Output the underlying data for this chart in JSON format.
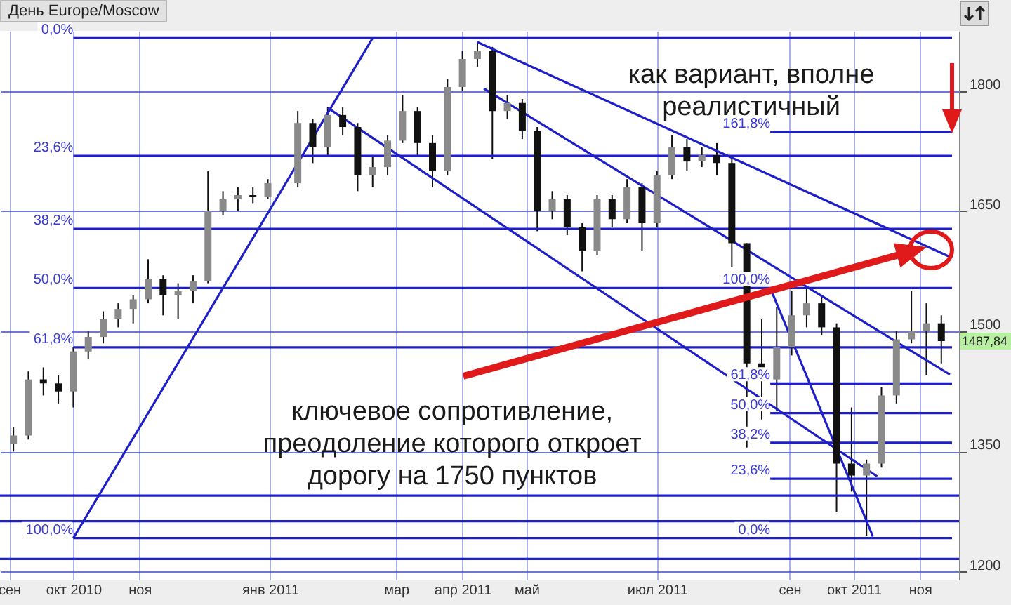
{
  "chart_data": {
    "type": "candlestick",
    "title": "День Europe/Moscow",
    "x": [
      "2010-09-03",
      "2010-09-10",
      "2010-09-17",
      "2010-09-24",
      "2010-10-01",
      "2010-10-08",
      "2010-10-15",
      "2010-10-22",
      "2010-10-29",
      "2010-11-05",
      "2010-11-12",
      "2010-11-19",
      "2010-11-26",
      "2010-12-03",
      "2010-12-10",
      "2010-12-17",
      "2010-12-24",
      "2010-12-31",
      "2011-01-14",
      "2011-01-21",
      "2011-01-28",
      "2011-02-04",
      "2011-02-11",
      "2011-02-18",
      "2011-02-25",
      "2011-03-04",
      "2011-03-11",
      "2011-03-18",
      "2011-03-25",
      "2011-04-01",
      "2011-04-08",
      "2011-04-15",
      "2011-04-22",
      "2011-04-29",
      "2011-05-06",
      "2011-05-13",
      "2011-05-20",
      "2011-05-27",
      "2011-06-03",
      "2011-06-10",
      "2011-06-17",
      "2011-06-24",
      "2011-07-01",
      "2011-07-08",
      "2011-07-15",
      "2011-07-22",
      "2011-07-29",
      "2011-08-05",
      "2011-08-12",
      "2011-08-19",
      "2011-08-26",
      "2011-09-02",
      "2011-09-09",
      "2011-09-16",
      "2011-09-23",
      "2011-09-30",
      "2011-10-07",
      "2011-10-14",
      "2011-10-21",
      "2011-10-28",
      "2011-11-04",
      "2011-11-11"
    ],
    "ohlc": [
      [
        1360,
        1380,
        1350,
        1370
      ],
      [
        1370,
        1450,
        1365,
        1440
      ],
      [
        1440,
        1455,
        1420,
        1435
      ],
      [
        1435,
        1445,
        1410,
        1425
      ],
      [
        1425,
        1480,
        1405,
        1475
      ],
      [
        1475,
        1500,
        1465,
        1493
      ],
      [
        1493,
        1525,
        1485,
        1515
      ],
      [
        1515,
        1535,
        1505,
        1528
      ],
      [
        1528,
        1545,
        1510,
        1540
      ],
      [
        1540,
        1590,
        1535,
        1565
      ],
      [
        1565,
        1570,
        1520,
        1545
      ],
      [
        1545,
        1560,
        1515,
        1550
      ],
      [
        1550,
        1570,
        1535,
        1563
      ],
      [
        1563,
        1700,
        1560,
        1650
      ],
      [
        1650,
        1675,
        1645,
        1665
      ],
      [
        1665,
        1680,
        1650,
        1670
      ],
      [
        1670,
        1680,
        1660,
        1668
      ],
      [
        1668,
        1690,
        1665,
        1685
      ],
      [
        1685,
        1775,
        1680,
        1760
      ],
      [
        1760,
        1765,
        1710,
        1730
      ],
      [
        1730,
        1780,
        1720,
        1770
      ],
      [
        1770,
        1780,
        1745,
        1755
      ],
      [
        1755,
        1760,
        1675,
        1695
      ],
      [
        1695,
        1720,
        1680,
        1705
      ],
      [
        1705,
        1745,
        1695,
        1738
      ],
      [
        1738,
        1795,
        1735,
        1775
      ],
      [
        1775,
        1780,
        1720,
        1735
      ],
      [
        1735,
        1745,
        1680,
        1700
      ],
      [
        1700,
        1815,
        1695,
        1805
      ],
      [
        1805,
        1850,
        1800,
        1840
      ],
      [
        1840,
        1860,
        1830,
        1850
      ],
      [
        1850,
        1855,
        1715,
        1775
      ],
      [
        1775,
        1795,
        1765,
        1785
      ],
      [
        1785,
        1790,
        1740,
        1750
      ],
      [
        1750,
        1755,
        1625,
        1650
      ],
      [
        1650,
        1675,
        1640,
        1665
      ],
      [
        1665,
        1670,
        1620,
        1630
      ],
      [
        1630,
        1635,
        1575,
        1600
      ],
      [
        1600,
        1670,
        1595,
        1665
      ],
      [
        1665,
        1670,
        1630,
        1640
      ],
      [
        1640,
        1690,
        1635,
        1680
      ],
      [
        1680,
        1685,
        1600,
        1635
      ],
      [
        1635,
        1700,
        1630,
        1695
      ],
      [
        1695,
        1745,
        1690,
        1730
      ],
      [
        1730,
        1740,
        1700,
        1712
      ],
      [
        1712,
        1730,
        1705,
        1720
      ],
      [
        1720,
        1735,
        1695,
        1710
      ],
      [
        1710,
        1715,
        1580,
        1610
      ],
      [
        1610,
        1610,
        1355,
        1460
      ],
      [
        1460,
        1515,
        1390,
        1440
      ],
      [
        1440,
        1530,
        1400,
        1480
      ],
      [
        1480,
        1550,
        1470,
        1520
      ],
      [
        1520,
        1555,
        1505,
        1535
      ],
      [
        1535,
        1545,
        1495,
        1505
      ],
      [
        1505,
        1510,
        1275,
        1335
      ],
      [
        1335,
        1405,
        1300,
        1320
      ],
      [
        1320,
        1340,
        1245,
        1335
      ],
      [
        1335,
        1430,
        1330,
        1420
      ],
      [
        1420,
        1500,
        1410,
        1490
      ],
      [
        1490,
        1550,
        1485,
        1500
      ],
      [
        1500,
        1535,
        1445,
        1510
      ],
      [
        1510,
        1520,
        1460,
        1487.84
      ]
    ],
    "xlim": [
      "2010-08-31",
      "2011-11-16"
    ],
    "xticks": [
      {
        "value": "2010-09-01",
        "label": "сен"
      },
      {
        "value": "2010-10-01",
        "label": "окт 2010"
      },
      {
        "value": "2010-11-01",
        "label": "ноя"
      },
      {
        "value": "2011-01-01",
        "label": "янв 2011"
      },
      {
        "value": "2011-03-01",
        "label": "мар"
      },
      {
        "value": "2011-04-01",
        "label": "апр 2011"
      },
      {
        "value": "2011-05-01",
        "label": "май"
      },
      {
        "value": "2011-07-01",
        "label": "июл 2011"
      },
      {
        "value": "2011-09-01",
        "label": "сен"
      },
      {
        "value": "2011-10-01",
        "label": "окт 2011"
      },
      {
        "value": "2011-11-01",
        "label": "ноя"
      }
    ],
    "ylim": [
      1190,
      1875
    ],
    "yticks": [
      1200,
      1350,
      1500,
      1650,
      1800
    ],
    "grid": true,
    "series": [
      {
        "type": "line",
        "color": "#1f1fc8",
        "x": [
          "2010-10-01",
          "2011-02-18"
        ],
        "values": [
          1242,
          1866
        ]
      },
      {
        "type": "line",
        "color": "#1f1fc8",
        "x": [
          "2011-04-08",
          "2011-11-15"
        ],
        "values": [
          1861,
          1593
        ]
      },
      {
        "type": "line",
        "color": "#1f1fc8",
        "x": [
          "2011-01-28",
          "2011-10-12"
        ],
        "values": [
          1779,
          1319
        ]
      },
      {
        "type": "line",
        "color": "#1f1fc8",
        "x": [
          "2011-04-11",
          "2011-11-15"
        ],
        "values": [
          1803,
          1446
        ]
      },
      {
        "type": "line",
        "color": "#1f1fc8",
        "x": [
          "2011-08-23",
          "2011-10-10"
        ],
        "values": [
          1554,
          1244
        ]
      },
      {
        "type": "line",
        "color": "#1f1fc8",
        "x": [
          "2010-10-01",
          "2011-11-16"
        ],
        "values": [
          1866,
          1866
        ]
      },
      {
        "type": "line",
        "color": "#1f1fc8",
        "x": [
          "2010-10-01",
          "2011-11-16"
        ],
        "values": [
          1719,
          1719
        ]
      },
      {
        "type": "line",
        "color": "#1f1fc8",
        "x": [
          "2010-10-01",
          "2011-11-16"
        ],
        "values": [
          1628,
          1628
        ]
      },
      {
        "type": "line",
        "color": "#1f1fc8",
        "x": [
          "2010-10-01",
          "2011-11-16"
        ],
        "values": [
          1554,
          1554
        ]
      },
      {
        "type": "line",
        "color": "#1f1fc8",
        "x": [
          "2010-10-01",
          "2011-11-16"
        ],
        "values": [
          1480,
          1480
        ]
      },
      {
        "type": "line",
        "color": "#1f1fc8",
        "x": [
          "2010-10-01",
          "2011-11-16"
        ],
        "values": [
          1242,
          1242
        ]
      },
      {
        "type": "line",
        "color": "#1f1fc8",
        "x": [
          "2011-08-23",
          "2011-11-16"
        ],
        "values": [
          1749,
          1749
        ]
      },
      {
        "type": "line",
        "color": "#1f1fc8",
        "x": [
          "2011-08-23",
          "2011-11-16"
        ],
        "values": [
          1435,
          1435
        ]
      },
      {
        "type": "line",
        "color": "#1f1fc8",
        "x": [
          "2011-08-23",
          "2011-11-16"
        ],
        "values": [
          1398,
          1398
        ]
      },
      {
        "type": "line",
        "color": "#1f1fc8",
        "x": [
          "2011-08-23",
          "2011-11-16"
        ],
        "values": [
          1361,
          1361
        ]
      },
      {
        "type": "line",
        "color": "#1f1fc8",
        "x": [
          "2011-08-23",
          "2011-11-16"
        ],
        "values": [
          1316,
          1316
        ]
      }
    ],
    "ref_lines": [
      {
        "axis": "y",
        "value": 1295,
        "color": "#1f1fc8"
      },
      {
        "axis": "y",
        "value": 1263,
        "color": "#1f1fc8"
      },
      {
        "axis": "y",
        "value": 1216,
        "color": "#1f1fc8"
      }
    ],
    "annotations": [
      "как вариант, вполне\nреалистичный",
      "ключевое сопротивление,\nпреодоление которого откроет\nдорогу на 1750 пунктов",
      {
        "text": "0,0%",
        "x": "2010-10-01",
        "y": 1866
      },
      {
        "text": "23,6%",
        "x": "2010-10-01",
        "y": 1719
      },
      {
        "text": "38,2%",
        "x": "2010-10-01",
        "y": 1628
      },
      {
        "text": "50,0%",
        "x": "2010-10-01",
        "y": 1554
      },
      {
        "text": "61,8%",
        "x": "2010-10-01",
        "y": 1480
      },
      {
        "text": "100,0%",
        "x": "2010-10-01",
        "y": 1242
      },
      {
        "text": "161,8%",
        "x": "2011-08-23",
        "y": 1749
      },
      {
        "text": "100,0%",
        "x": "2011-08-23",
        "y": 1554
      },
      {
        "text": "61,8%",
        "x": "2011-08-23",
        "y": 1435
      },
      {
        "text": "50,0%",
        "x": "2011-08-23",
        "y": 1398
      },
      {
        "text": "38,2%",
        "x": "2011-08-23",
        "y": 1361
      },
      {
        "text": "23,6%",
        "x": "2011-08-23",
        "y": 1316
      },
      {
        "text": "0,0%",
        "x": "2011-08-23",
        "y": 1242
      },
      {
        "text": "1487,84",
        "x": "2011-11-11",
        "y": 1487.84
      }
    ]
  }
}
